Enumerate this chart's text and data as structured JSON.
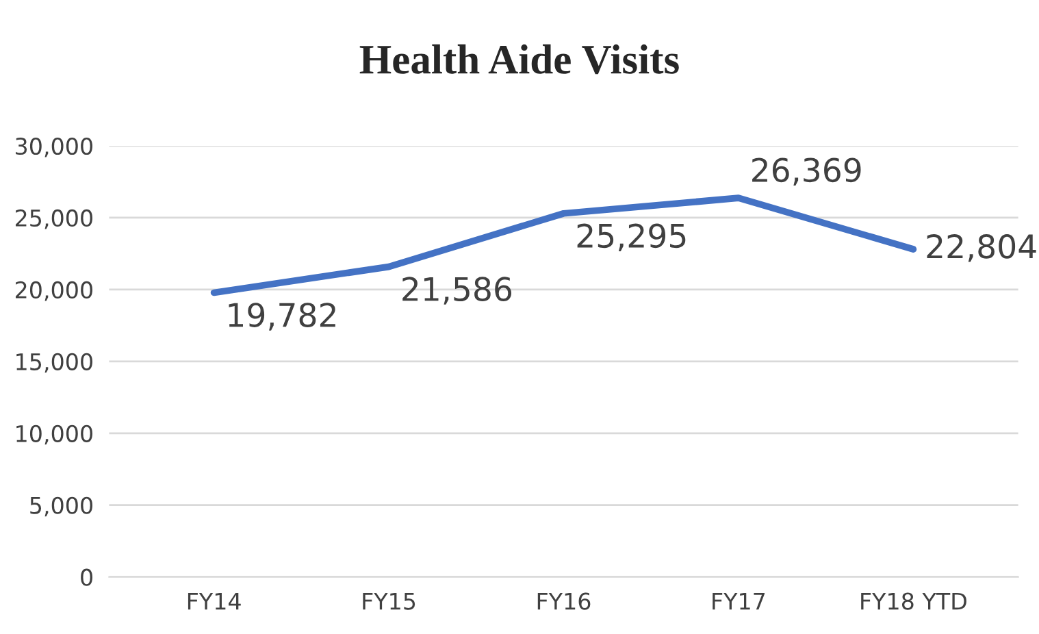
{
  "chart_data": {
    "type": "line",
    "title": "Health Aide Visits",
    "categories": [
      "FY14",
      "FY15",
      "FY16",
      "FY17",
      "FY18 YTD"
    ],
    "series": [
      {
        "color": "#4472c4",
        "values": [
          19782,
          21586,
          25295,
          26369,
          22804
        ],
        "value_labels": [
          "19,782",
          "21,586",
          "25,295",
          "26,369",
          "22,804"
        ]
      }
    ],
    "ylim": [
      0,
      30000
    ],
    "yticks": [
      {
        "value": 0,
        "label": "0"
      },
      {
        "value": 5000,
        "label": "5,000"
      },
      {
        "value": 10000,
        "label": "10,000"
      },
      {
        "value": 15000,
        "label": "15,000"
      },
      {
        "value": 20000,
        "label": "20,000"
      },
      {
        "value": 25000,
        "label": "25,000"
      },
      {
        "value": 30000,
        "label": "30,000"
      }
    ],
    "grid": "y",
    "legend": false,
    "marker": "none",
    "line_style": "solid"
  }
}
